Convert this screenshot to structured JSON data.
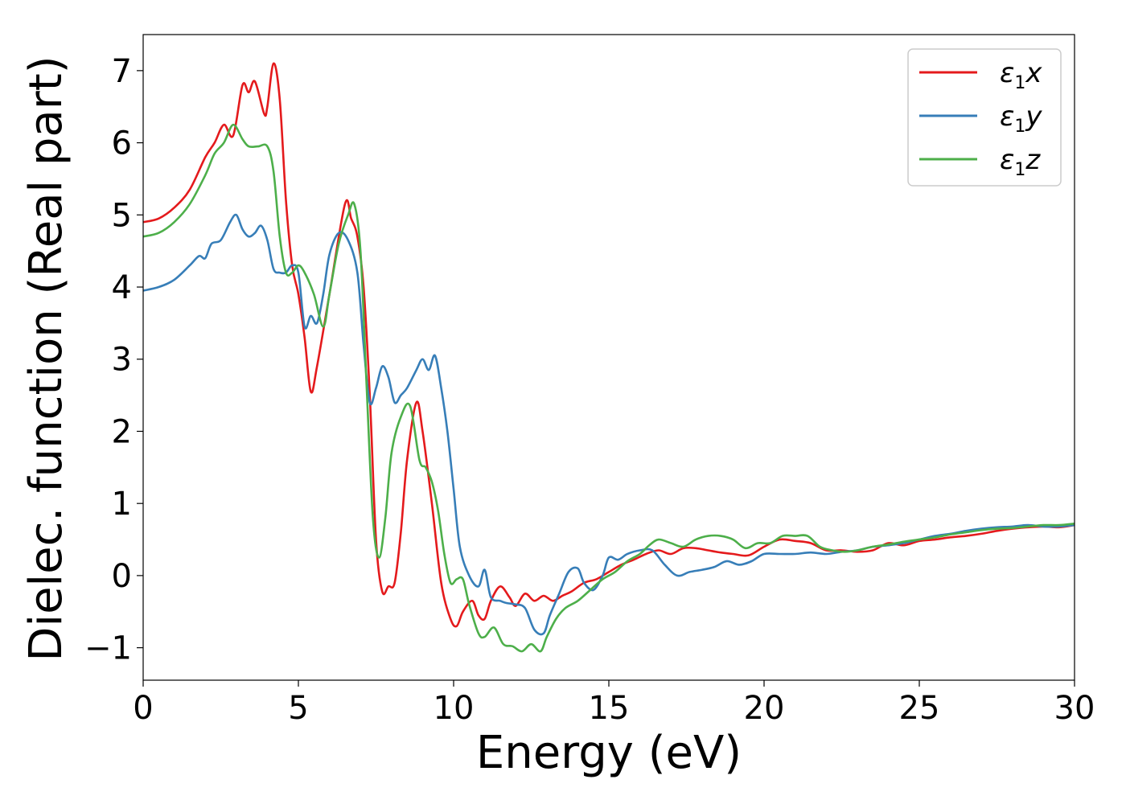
{
  "chart_data": {
    "type": "line",
    "xlabel": "Energy (eV)",
    "ylabel": "Dielec. function (Real part)",
    "xlim": [
      0,
      30
    ],
    "ylim": [
      -1.45,
      7.5
    ],
    "xticks": [
      0,
      5,
      10,
      15,
      20,
      25,
      30
    ],
    "yticks": [
      -1,
      0,
      1,
      2,
      3,
      4,
      5,
      6,
      7
    ],
    "xtick_labels": [
      "0",
      "5",
      "10",
      "15",
      "20",
      "25",
      "30"
    ],
    "ytick_labels": [
      "−1",
      "0",
      "1",
      "2",
      "3",
      "4",
      "5",
      "6",
      "7"
    ],
    "grid": false,
    "legend_position": "top-right",
    "series": [
      {
        "name": "ε1x",
        "legend_main": "ε",
        "legend_sub": "1",
        "legend_tail": "x",
        "color": "#e41a1c",
        "x": [
          0,
          0.5,
          1.0,
          1.5,
          2.0,
          2.3,
          2.6,
          2.9,
          3.2,
          3.4,
          3.6,
          3.9,
          4.0,
          4.2,
          4.4,
          4.6,
          4.8,
          5.0,
          5.2,
          5.4,
          5.6,
          6.0,
          6.5,
          6.7,
          6.9,
          7.1,
          7.3,
          7.5,
          7.7,
          7.9,
          8.1,
          8.3,
          8.5,
          8.8,
          9.0,
          9.3,
          9.6,
          9.9,
          10.1,
          10.3,
          10.6,
          10.8,
          11.0,
          11.2,
          11.5,
          11.8,
          12.0,
          12.3,
          12.6,
          12.9,
          13.2,
          13.5,
          13.8,
          14.2,
          14.6,
          15.0,
          15.4,
          15.8,
          16.2,
          16.6,
          17.0,
          17.4,
          17.8,
          18.2,
          18.6,
          19.0,
          19.5,
          20.0,
          20.5,
          21.0,
          21.5,
          22.0,
          22.5,
          23.0,
          23.5,
          24.0,
          24.5,
          25.0,
          25.5,
          26.0,
          26.5,
          27.0,
          27.5,
          28.0,
          28.5,
          29.0,
          29.5,
          30.0
        ],
        "y": [
          4.9,
          4.95,
          5.1,
          5.35,
          5.8,
          6.0,
          6.25,
          6.1,
          6.8,
          6.7,
          6.85,
          6.4,
          6.5,
          7.1,
          6.6,
          5.2,
          4.3,
          3.9,
          3.3,
          2.55,
          2.9,
          3.9,
          5.15,
          4.95,
          4.7,
          4.0,
          2.5,
          0.5,
          -0.22,
          -0.15,
          -0.1,
          0.6,
          1.6,
          2.4,
          2.0,
          1.0,
          -0.1,
          -0.6,
          -0.7,
          -0.5,
          -0.35,
          -0.55,
          -0.6,
          -0.35,
          -0.15,
          -0.3,
          -0.42,
          -0.25,
          -0.35,
          -0.28,
          -0.35,
          -0.28,
          -0.22,
          -0.1,
          -0.05,
          0.05,
          0.15,
          0.22,
          0.3,
          0.35,
          0.3,
          0.38,
          0.38,
          0.35,
          0.32,
          0.3,
          0.28,
          0.4,
          0.5,
          0.48,
          0.45,
          0.35,
          0.35,
          0.33,
          0.35,
          0.45,
          0.42,
          0.48,
          0.5,
          0.53,
          0.55,
          0.58,
          0.62,
          0.65,
          0.67,
          0.68,
          0.67,
          0.7
        ]
      },
      {
        "name": "ε1y",
        "legend_main": "ε",
        "legend_sub": "1",
        "legend_tail": "y",
        "color": "#377eb8",
        "x": [
          0,
          0.5,
          1.0,
          1.5,
          1.8,
          2.0,
          2.2,
          2.5,
          2.8,
          3.0,
          3.2,
          3.4,
          3.6,
          3.8,
          4.0,
          4.2,
          4.4,
          4.6,
          4.8,
          5.0,
          5.2,
          5.4,
          5.6,
          5.8,
          6.0,
          6.3,
          6.6,
          6.9,
          7.1,
          7.3,
          7.5,
          7.7,
          7.9,
          8.1,
          8.3,
          8.5,
          8.8,
          9.0,
          9.2,
          9.4,
          9.6,
          9.8,
          10.0,
          10.2,
          10.5,
          10.8,
          11.0,
          11.2,
          11.5,
          11.7,
          12.0,
          12.3,
          12.6,
          12.9,
          13.1,
          13.4,
          13.7,
          14.0,
          14.2,
          14.5,
          14.8,
          15.0,
          15.3,
          15.6,
          16.0,
          16.4,
          16.8,
          17.2,
          17.6,
          18.0,
          18.4,
          18.8,
          19.2,
          19.6,
          20.0,
          20.5,
          21.0,
          21.5,
          22.0,
          22.5,
          23.0,
          23.5,
          24.0,
          24.5,
          25.0,
          25.5,
          26.0,
          26.5,
          27.0,
          27.5,
          28.0,
          28.5,
          29.0,
          29.5,
          30.0
        ],
        "y": [
          3.95,
          4.0,
          4.1,
          4.3,
          4.43,
          4.4,
          4.6,
          4.65,
          4.9,
          5.0,
          4.8,
          4.7,
          4.75,
          4.85,
          4.65,
          4.25,
          4.2,
          4.2,
          4.3,
          4.2,
          3.45,
          3.6,
          3.5,
          3.9,
          4.45,
          4.75,
          4.65,
          4.2,
          3.2,
          2.4,
          2.6,
          2.9,
          2.75,
          2.4,
          2.5,
          2.6,
          2.85,
          3.0,
          2.85,
          3.05,
          2.6,
          2.0,
          1.2,
          0.4,
          0.0,
          -0.15,
          0.08,
          -0.3,
          -0.35,
          -0.38,
          -0.4,
          -0.45,
          -0.75,
          -0.8,
          -0.55,
          -0.25,
          0.05,
          0.1,
          -0.1,
          -0.2,
          0.0,
          0.25,
          0.22,
          0.3,
          0.35,
          0.35,
          0.15,
          0.0,
          0.05,
          0.08,
          0.12,
          0.2,
          0.15,
          0.2,
          0.3,
          0.3,
          0.3,
          0.32,
          0.3,
          0.33,
          0.35,
          0.4,
          0.42,
          0.45,
          0.5,
          0.55,
          0.58,
          0.62,
          0.65,
          0.67,
          0.68,
          0.7,
          0.68,
          0.68,
          0.7
        ]
      },
      {
        "name": "ε1z",
        "legend_main": "ε",
        "legend_sub": "1",
        "legend_tail": "z",
        "color": "#4daf4a",
        "x": [
          0,
          0.5,
          1.0,
          1.5,
          2.0,
          2.3,
          2.6,
          2.9,
          3.2,
          3.4,
          3.7,
          4.0,
          4.2,
          4.4,
          4.6,
          4.8,
          5.0,
          5.2,
          5.5,
          5.8,
          6.0,
          6.3,
          6.6,
          6.8,
          7.0,
          7.2,
          7.4,
          7.6,
          7.8,
          8.0,
          8.3,
          8.6,
          8.9,
          9.1,
          9.3,
          9.5,
          9.7,
          9.9,
          10.1,
          10.3,
          10.5,
          10.8,
          11.0,
          11.3,
          11.6,
          11.9,
          12.2,
          12.5,
          12.8,
          13.0,
          13.3,
          13.6,
          14.0,
          14.4,
          14.8,
          15.2,
          15.6,
          16.0,
          16.3,
          16.6,
          17.0,
          17.4,
          17.8,
          18.2,
          18.6,
          19.0,
          19.4,
          19.8,
          20.2,
          20.6,
          21.0,
          21.4,
          21.8,
          22.2,
          22.6,
          23.0,
          23.5,
          24.0,
          24.5,
          25.0,
          25.5,
          26.0,
          26.5,
          27.0,
          27.5,
          28.0,
          28.5,
          29.0,
          29.5,
          30.0
        ],
        "y": [
          4.7,
          4.75,
          4.9,
          5.15,
          5.55,
          5.85,
          6.0,
          6.25,
          6.05,
          5.95,
          5.95,
          5.95,
          5.6,
          4.7,
          4.2,
          4.2,
          4.3,
          4.2,
          3.9,
          3.45,
          3.9,
          4.6,
          5.0,
          5.15,
          4.5,
          2.6,
          0.8,
          0.25,
          0.8,
          1.7,
          2.2,
          2.35,
          1.6,
          1.5,
          1.3,
          0.9,
          0.3,
          -0.1,
          -0.05,
          -0.05,
          -0.4,
          -0.8,
          -0.85,
          -0.72,
          -0.95,
          -0.98,
          -1.05,
          -0.95,
          -1.05,
          -0.85,
          -0.6,
          -0.45,
          -0.35,
          -0.2,
          -0.05,
          0.05,
          0.2,
          0.3,
          0.42,
          0.5,
          0.45,
          0.4,
          0.5,
          0.55,
          0.55,
          0.5,
          0.38,
          0.45,
          0.45,
          0.55,
          0.55,
          0.55,
          0.4,
          0.35,
          0.33,
          0.35,
          0.4,
          0.43,
          0.47,
          0.5,
          0.53,
          0.57,
          0.6,
          0.63,
          0.65,
          0.66,
          0.68,
          0.7,
          0.7,
          0.72
        ]
      }
    ]
  }
}
